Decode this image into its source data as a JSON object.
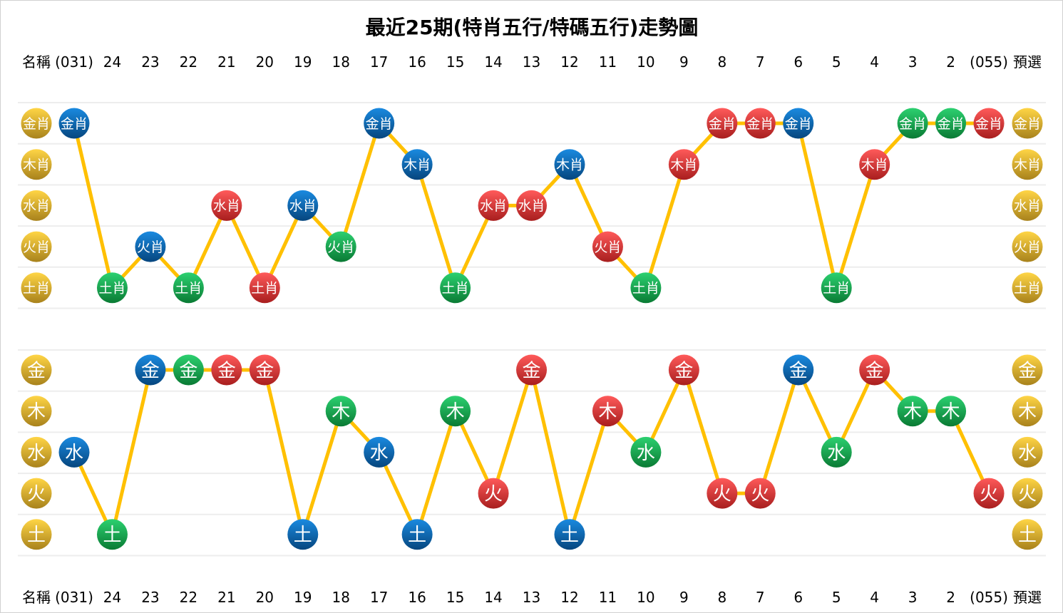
{
  "chart_data": [
    {
      "type": "line",
      "title": "最近25期(特肖五行/特碼五行)走勢圖",
      "columns": [
        "(031)",
        "24",
        "23",
        "22",
        "21",
        "20",
        "19",
        "18",
        "17",
        "16",
        "15",
        "14",
        "13",
        "12",
        "11",
        "10",
        "9",
        "8",
        "7",
        "6",
        "5",
        "4",
        "3",
        "2",
        "(055)"
      ],
      "left_header": "名稱",
      "right_header": "預選",
      "rows": [
        "金肖",
        "木肖",
        "水肖",
        "火肖",
        "土肖"
      ],
      "values": [
        "金肖",
        "土肖",
        "火肖",
        "土肖",
        "水肖",
        "土肖",
        "水肖",
        "火肖",
        "金肖",
        "木肖",
        "土肖",
        "水肖",
        "水肖",
        "木肖",
        "火肖",
        "土肖",
        "木肖",
        "金肖",
        "金肖",
        "金肖",
        "土肖",
        "木肖",
        "金肖",
        "金肖",
        "金肖"
      ],
      "ball_colors": [
        "blue",
        "green",
        "blue",
        "green",
        "red",
        "red",
        "blue",
        "green",
        "blue",
        "blue",
        "green",
        "red",
        "red",
        "blue",
        "red",
        "green",
        "red",
        "red",
        "red",
        "blue",
        "green",
        "red",
        "green",
        "green",
        "red"
      ]
    },
    {
      "type": "line",
      "rows": [
        "金",
        "木",
        "水",
        "火",
        "土"
      ],
      "values": [
        "水",
        "土",
        "金",
        "金",
        "金",
        "金",
        "土",
        "木",
        "水",
        "土",
        "木",
        "火",
        "金",
        "土",
        "木",
        "水",
        "金",
        "火",
        "火",
        "金",
        "水",
        "金",
        "木",
        "木",
        "火"
      ],
      "ball_colors": [
        "blue",
        "green",
        "blue",
        "green",
        "red",
        "red",
        "blue",
        "green",
        "blue",
        "blue",
        "green",
        "red",
        "red",
        "blue",
        "red",
        "green",
        "red",
        "red",
        "red",
        "blue",
        "green",
        "red",
        "green",
        "green",
        "red"
      ]
    }
  ],
  "colors": {
    "red": "#e03030",
    "blue": "#0a6ec0",
    "green": "#14a84a",
    "gold": "#e8b830",
    "line": "#ffc000"
  }
}
